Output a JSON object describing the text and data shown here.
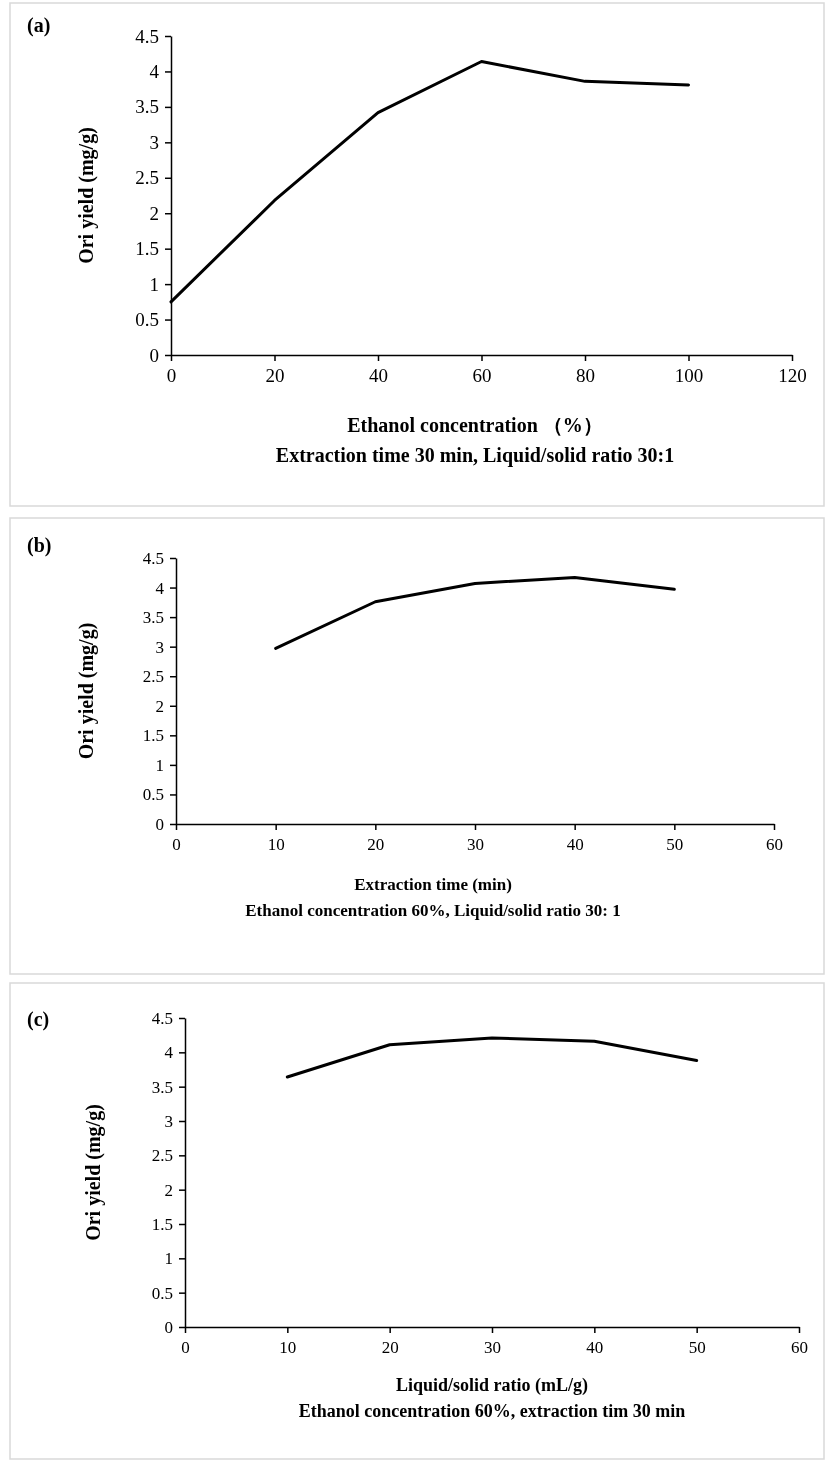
{
  "chart_data": [
    {
      "type": "line",
      "title": "(a)",
      "xlabel": "Ethanol concentration （%）",
      "ylabel": "Ori yield (mg/g)",
      "annotations": [
        "Extraction time 30 min, Liquid/solid ratio 30:1"
      ],
      "x": [
        0,
        20,
        40,
        60,
        80,
        100
      ],
      "series": [
        {
          "color": "#000000",
          "values": [
            0.75,
            2.18,
            3.42,
            4.14,
            3.86,
            3.81
          ]
        }
      ],
      "xlim": [
        0,
        120
      ],
      "xticks": [
        0,
        20,
        40,
        60,
        80,
        100,
        120
      ],
      "ylim": [
        0,
        4.5
      ],
      "yticks": [
        0,
        0.5,
        1,
        1.5,
        2,
        2.5,
        3,
        3.5,
        4,
        4.5
      ],
      "grid": false,
      "legend": false,
      "marker": "none",
      "line_style": "solid"
    },
    {
      "type": "line",
      "title": "(b)",
      "xlabel": "Extraction time (min)",
      "ylabel": "Ori yield (mg/g)",
      "annotations": [
        "Ethanol concentration 60%, Liquid/solid ratio 30: 1"
      ],
      "x": [
        10,
        20,
        30,
        40,
        50
      ],
      "series": [
        {
          "color": "#000000",
          "values": [
            2.97,
            3.76,
            4.07,
            4.17,
            3.97
          ]
        }
      ],
      "xlim": [
        0,
        60
      ],
      "xticks": [
        0,
        10,
        20,
        30,
        40,
        50,
        60
      ],
      "ylim": [
        0,
        4.5
      ],
      "yticks": [
        0,
        0.5,
        1,
        1.5,
        2,
        2.5,
        3,
        3.5,
        4,
        4.5
      ],
      "grid": false,
      "legend": false,
      "marker": "none",
      "line_style": "solid"
    },
    {
      "type": "line",
      "title": "(c)",
      "xlabel": "Liquid/solid ratio (mL/g)",
      "ylabel": "Ori yield (mg/g)",
      "annotations": [
        "Ethanol concentration 60%, extraction tim 30 min"
      ],
      "x": [
        10,
        20,
        30,
        40,
        50
      ],
      "series": [
        {
          "color": "#000000",
          "values": [
            3.64,
            4.11,
            4.21,
            4.16,
            3.88
          ]
        }
      ],
      "xlim": [
        0,
        60
      ],
      "xticks": [
        0,
        10,
        20,
        30,
        40,
        50,
        60
      ],
      "ylim": [
        0,
        4.5
      ],
      "yticks": [
        0,
        0.5,
        1,
        1.5,
        2,
        2.5,
        3,
        3.5,
        4,
        4.5
      ],
      "grid": false,
      "legend": false,
      "marker": "none",
      "line_style": "solid"
    }
  ]
}
